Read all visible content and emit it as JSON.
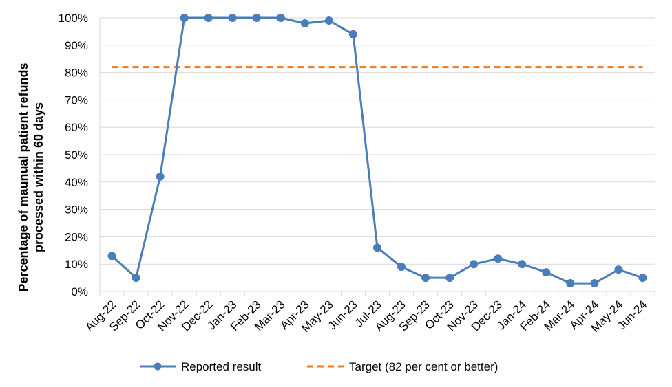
{
  "chart_data": {
    "type": "line",
    "title": "",
    "xlabel": "",
    "ylabel": [
      "Percentage of maunual patient refunds",
      "processed within 60 days"
    ],
    "ylim": [
      0,
      100
    ],
    "yticks": [
      0,
      10,
      20,
      30,
      40,
      50,
      60,
      70,
      80,
      90,
      100
    ],
    "ytick_labels": [
      "0%",
      "10%",
      "20%",
      "30%",
      "40%",
      "50%",
      "60%",
      "70%",
      "80%",
      "90%",
      "100%"
    ],
    "grid": "horizontal",
    "legend_position": "bottom",
    "categories": [
      "Aug-22",
      "Sep-22",
      "Oct-22",
      "Nov-22",
      "Dec-22",
      "Jan-23",
      "Feb-23",
      "Mar-23",
      "Apr-23",
      "May-23",
      "Jun-23",
      "Jul-23",
      "Aug-23",
      "Sep-23",
      "Oct-23",
      "Nov-23",
      "Dec-23",
      "Jan-24",
      "Feb-24",
      "Mar-24",
      "Apr-24",
      "May-24",
      "Jun-24"
    ],
    "series": [
      {
        "name": "Reported result",
        "color": "#4a7ebb",
        "style": "solid-with-markers",
        "values": [
          13,
          5,
          42,
          100,
          100,
          100,
          100,
          100,
          98,
          99,
          94,
          16,
          9,
          5,
          5,
          10,
          12,
          10,
          7,
          3,
          3,
          8,
          5
        ]
      },
      {
        "name": "Target (82 per cent or better)",
        "color": "#f07922",
        "style": "dashed",
        "values": [
          82,
          82,
          82,
          82,
          82,
          82,
          82,
          82,
          82,
          82,
          82,
          82,
          82,
          82,
          82,
          82,
          82,
          82,
          82,
          82,
          82,
          82,
          82
        ]
      }
    ]
  }
}
